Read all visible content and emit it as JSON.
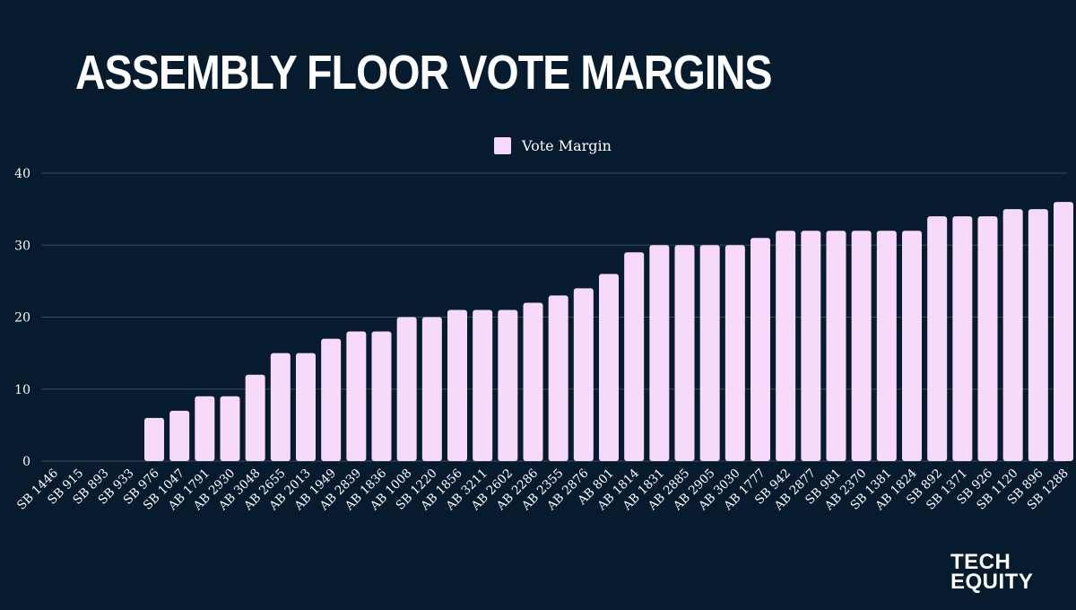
{
  "header": {
    "title": "ASSEMBLY FLOOR VOTE MARGINS"
  },
  "logo": {
    "line1": "TECH",
    "line2": "EQUITY"
  },
  "colors": {
    "background": "#061c2e",
    "bar": "#f6d9fb",
    "grid": "#3a4d5e",
    "text": "#ffffff"
  },
  "chart_data": {
    "type": "bar",
    "categories": [
      "SB 1446",
      "SB 915",
      "SB 893",
      "SB 933",
      "SB 976",
      "SB 1047",
      "AB 1791",
      "AB 2930",
      "AB 3048",
      "AB 2655",
      "AB 2013",
      "AB 1949",
      "AB 2839",
      "AB 1836",
      "AB 1008",
      "SB 1220",
      "AB 1856",
      "AB 3211",
      "AB 2602",
      "AB 2286",
      "AB 2355",
      "AB 2876",
      "AB 801",
      "AB 1814",
      "AB 1831",
      "AB 2885",
      "AB 2905",
      "AB 3030",
      "AB 1777",
      "SB 942",
      "AB 2877",
      "SB 981",
      "AB 2370",
      "SB 1381",
      "AB 1824",
      "SB 892",
      "SB 1371",
      "SB 926",
      "SB 1120",
      "SB 896",
      "SB 1288"
    ],
    "series": [
      {
        "name": "Vote Margin",
        "values": [
          0,
          0,
          0,
          0,
          6,
          7,
          9,
          9,
          12,
          15,
          15,
          17,
          18,
          18,
          20,
          20,
          21,
          21,
          21,
          22,
          23,
          24,
          26,
          29,
          30,
          30,
          30,
          30,
          31,
          32,
          32,
          32,
          32,
          32,
          32,
          34,
          34,
          34,
          35,
          35,
          36
        ]
      }
    ],
    "yticks": [
      0,
      10,
      20,
      30,
      40
    ],
    "ylim": [
      0,
      40
    ],
    "grid": true,
    "legend_position": "top-center"
  }
}
